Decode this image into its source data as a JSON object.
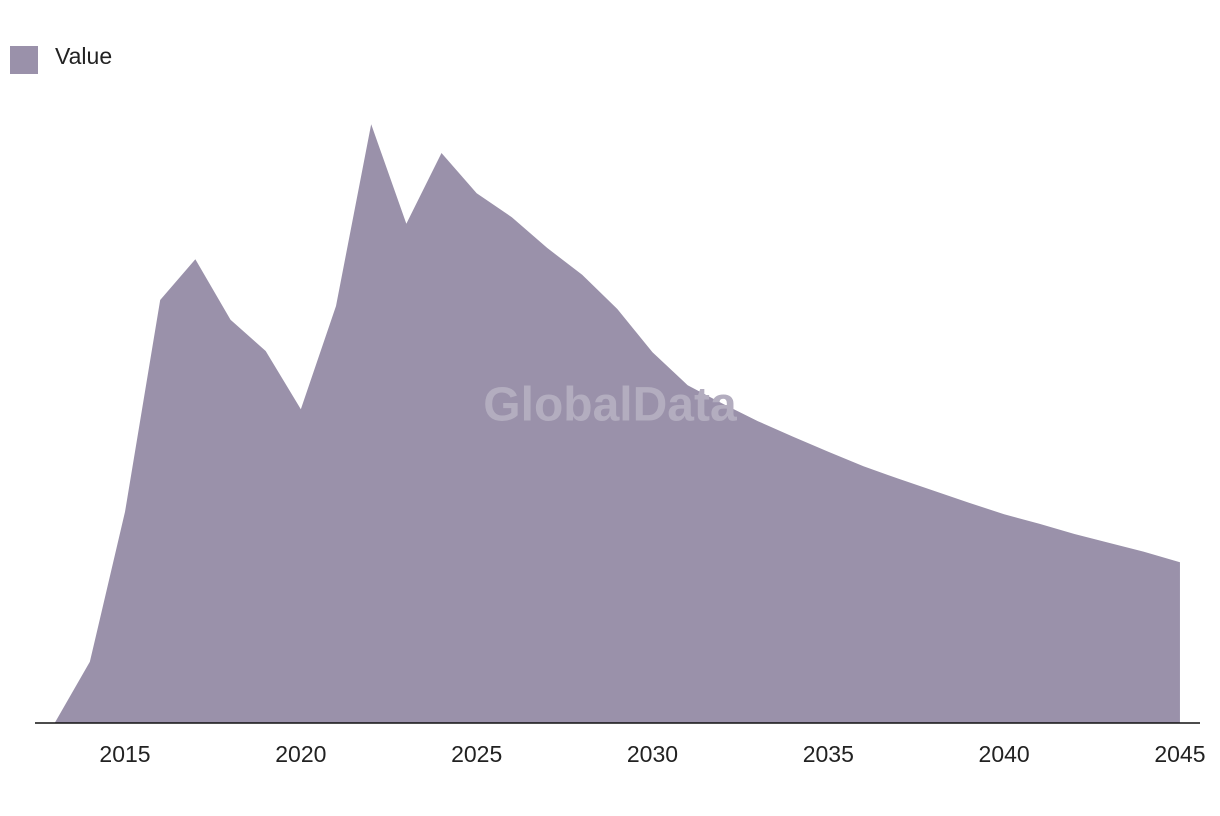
{
  "chart_data": {
    "type": "area",
    "watermark": "GlobalData",
    "x": [
      2013,
      2014,
      2015,
      2016,
      2017,
      2018,
      2019,
      2020,
      2021,
      2022,
      2023,
      2024,
      2025,
      2026,
      2027,
      2028,
      2029,
      2030,
      2031,
      2032,
      2033,
      2034,
      2035,
      2036,
      2037,
      2038,
      2039,
      2040,
      2041,
      2042,
      2043,
      2044,
      2045
    ],
    "series": [
      {
        "name": "Value",
        "color": "#9a91aa",
        "values": [
          0,
          10.2,
          35.2,
          70.5,
          77.3,
          67.2,
          62,
          52.3,
          69.5,
          99.8,
          83.2,
          95,
          88.3,
          84.3,
          79.2,
          74.7,
          69,
          61.8,
          56.3,
          53.2,
          50.3,
          47.7,
          45.2,
          42.8,
          40.7,
          38.7,
          36.7,
          34.8,
          33.2,
          31.5,
          30,
          28.5,
          26.8
        ]
      }
    ],
    "xlim": [
      2012.44,
      2045.57
    ],
    "xticks": [
      2015,
      2020,
      2025,
      2030,
      2035,
      2040,
      2045
    ],
    "ylim": [
      0,
      100
    ],
    "legend": "top-left"
  }
}
